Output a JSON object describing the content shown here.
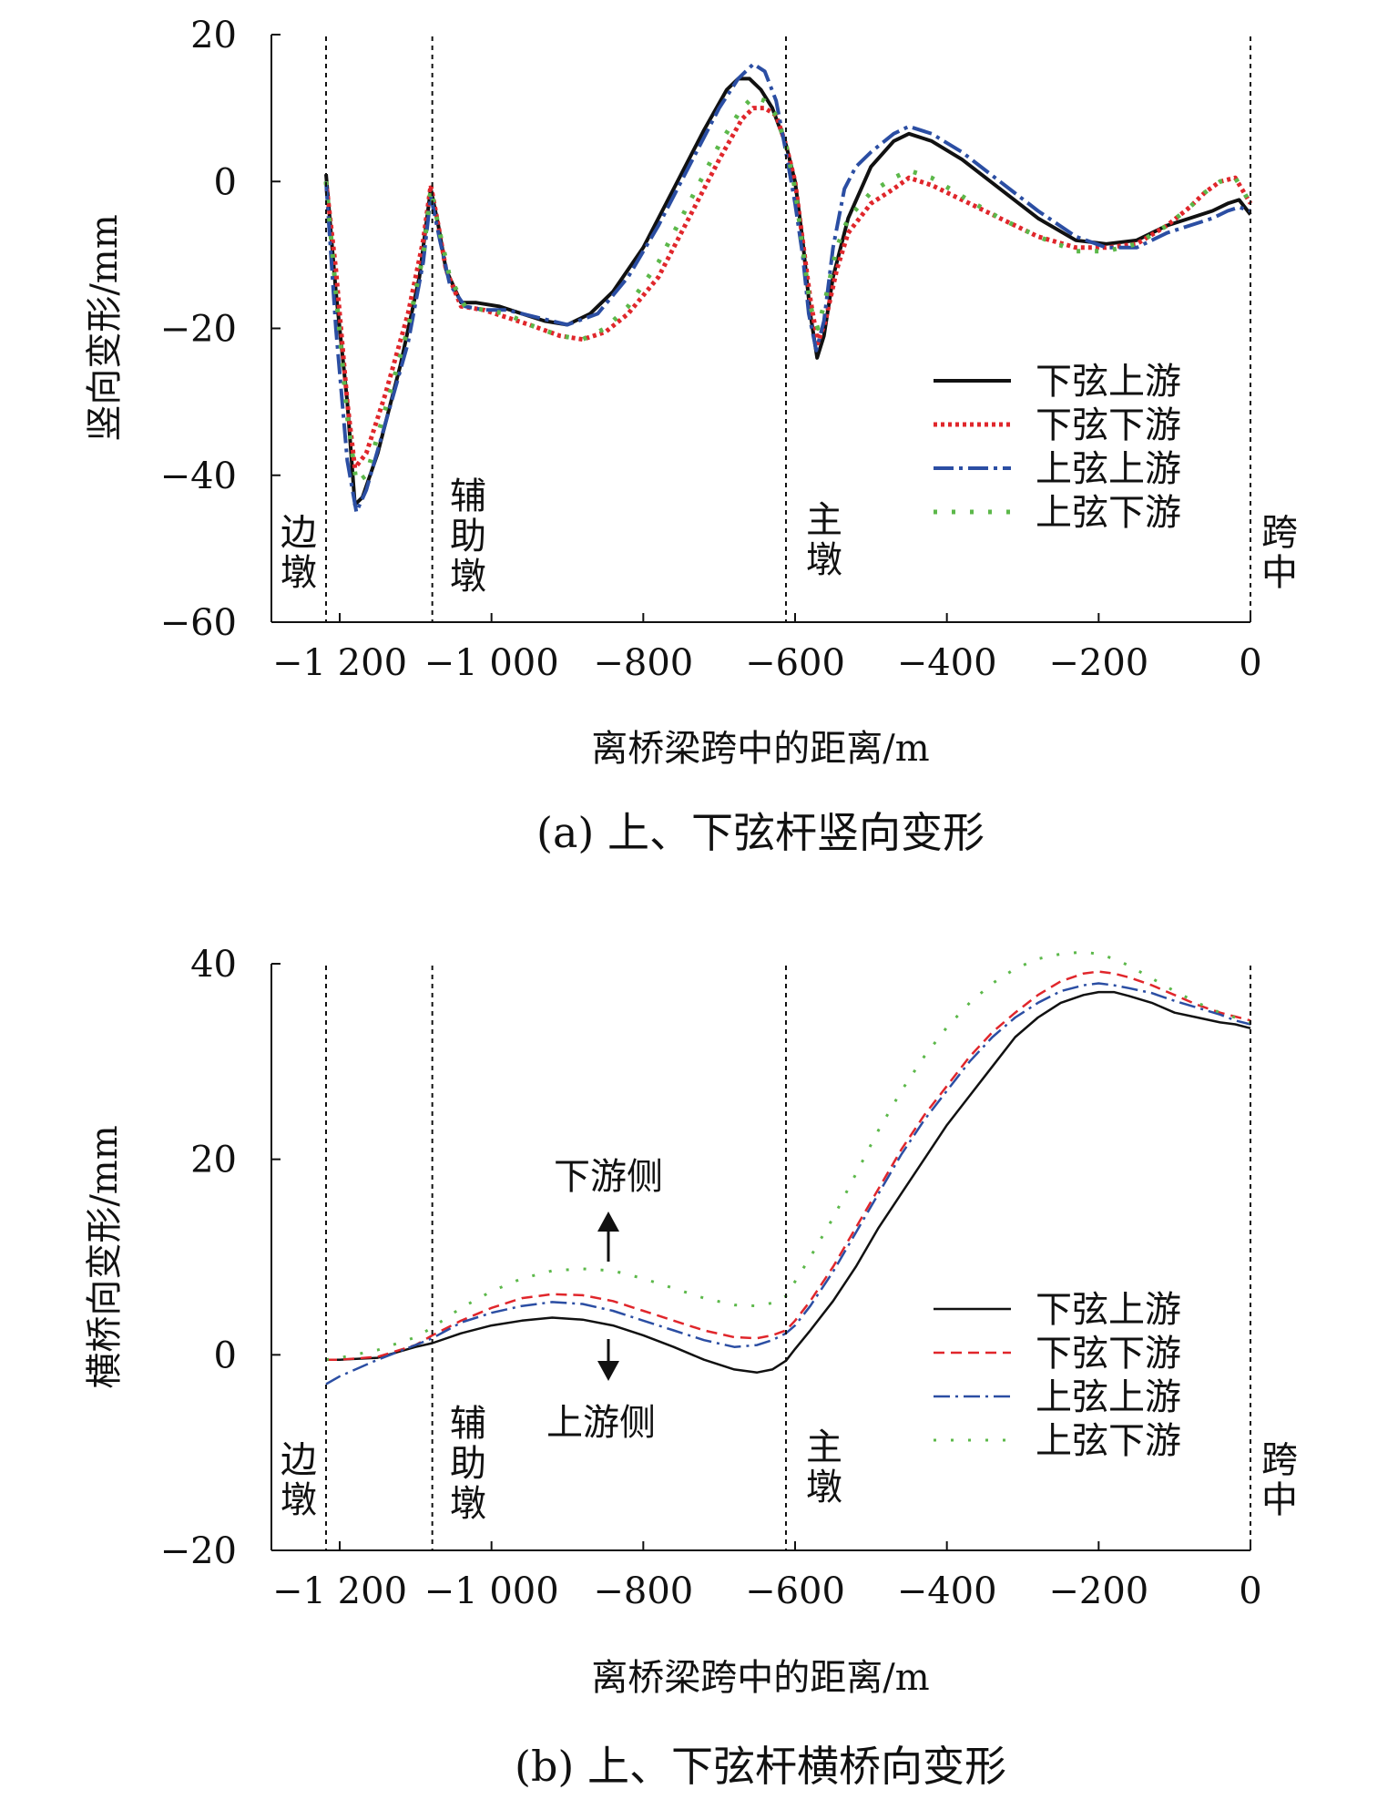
{
  "captions": {
    "a": "(a) 上、下弦杆竖向变形",
    "b": "(b) 上、下弦杆横桥向变形"
  },
  "pier_labels": {
    "side": [
      "边",
      "墩"
    ],
    "aux": [
      "辅",
      "助",
      "墩"
    ],
    "main": [
      "主",
      "墩"
    ],
    "mid": [
      "跨",
      "中"
    ]
  },
  "notes": {
    "downstream_side": "下游侧",
    "upstream_side": "上游侧"
  },
  "colors": {
    "lower_upstream": "#111111",
    "lower_downstream": "#e0262b",
    "upper_upstream": "#2b4ea3",
    "upper_downstream": "#5cb84a"
  },
  "chart_data": [
    {
      "type": "line",
      "caption": "(a) 上、下弦杆竖向变形",
      "xlabel": "离桥梁跨中的距离/m",
      "ylabel": "竖向变形/mm",
      "xlim": [
        -1290,
        0
      ],
      "ylim": [
        -60,
        20
      ],
      "x_ticks": [
        -1200,
        -1000,
        -800,
        -600,
        -400,
        -200,
        0
      ],
      "x_tick_labels": [
        "−1 200",
        "−1 000",
        "−800",
        "−600",
        "−400",
        "−200",
        "0"
      ],
      "y_ticks": [
        20,
        0,
        -20,
        -40,
        -60
      ],
      "y_tick_labels": [
        "20",
        "0",
        "−20",
        "−40",
        "−60"
      ],
      "pier_lines": [
        -1218,
        -1078,
        -612,
        0
      ],
      "legend_position": "right",
      "series": [
        {
          "name": "下弦上游",
          "style": "solid",
          "x": [
            -1218,
            -1205,
            -1190,
            -1180,
            -1170,
            -1150,
            -1120,
            -1095,
            -1080,
            -1070,
            -1060,
            -1040,
            -1020,
            -990,
            -960,
            -930,
            -900,
            -870,
            -840,
            -800,
            -760,
            -720,
            -690,
            -675,
            -660,
            -645,
            -630,
            -612,
            -600,
            -590,
            -580,
            -571,
            -562,
            -550,
            -530,
            -500,
            -470,
            -450,
            -420,
            -380,
            -330,
            -280,
            -230,
            -190,
            -150,
            -110,
            -80,
            -50,
            -30,
            -15,
            0
          ],
          "y": [
            1,
            -15,
            -30,
            -44,
            -43,
            -37,
            -25,
            -13,
            -1,
            -6,
            -12,
            -16.5,
            -16.5,
            -17,
            -18,
            -19,
            -19.5,
            -18,
            -15,
            -9,
            -1,
            7,
            12.5,
            14,
            14,
            12.5,
            10,
            5,
            0,
            -8,
            -18,
            -24,
            -21,
            -13,
            -5,
            2,
            5.5,
            6.5,
            5.5,
            3,
            -1,
            -5,
            -8,
            -8.5,
            -8,
            -6,
            -5,
            -4,
            -3,
            -2.5,
            -4.5
          ]
        },
        {
          "name": "下弦下游",
          "style": "dotted",
          "x": [
            -1218,
            -1205,
            -1190,
            -1180,
            -1165,
            -1140,
            -1110,
            -1090,
            -1080,
            -1070,
            -1060,
            -1040,
            -1010,
            -980,
            -950,
            -910,
            -880,
            -850,
            -820,
            -780,
            -740,
            -700,
            -670,
            -655,
            -640,
            -625,
            -612,
            -600,
            -590,
            -580,
            -570,
            -560,
            -545,
            -530,
            -500,
            -470,
            -450,
            -420,
            -380,
            -330,
            -280,
            -230,
            -190,
            -150,
            -110,
            -80,
            -60,
            -40,
            -20,
            0
          ],
          "y": [
            0,
            -12,
            -30,
            -39,
            -37,
            -29,
            -18,
            -8,
            -0.5,
            -6,
            -12,
            -17,
            -17.5,
            -18.5,
            -19.5,
            -21,
            -21.5,
            -20.5,
            -18,
            -13,
            -5,
            3,
            8.5,
            10,
            10,
            9,
            5,
            0,
            -8,
            -16,
            -22,
            -19,
            -12,
            -7,
            -3,
            -1,
            0.5,
            -0.5,
            -2.5,
            -5,
            -7.5,
            -9,
            -9,
            -8.5,
            -6,
            -3.5,
            -1.5,
            0,
            0.5,
            -3
          ]
        },
        {
          "name": "上弦上游",
          "style": "dashdot",
          "x": [
            -1218,
            -1205,
            -1190,
            -1178,
            -1165,
            -1140,
            -1110,
            -1090,
            -1080,
            -1068,
            -1055,
            -1035,
            -1010,
            -980,
            -940,
            -900,
            -860,
            -820,
            -780,
            -740,
            -700,
            -675,
            -655,
            -640,
            -625,
            -612,
            -600,
            -590,
            -582,
            -572,
            -562,
            -550,
            -535,
            -520,
            -500,
            -470,
            -450,
            -420,
            -380,
            -330,
            -280,
            -230,
            -190,
            -150,
            -110,
            -80,
            -50,
            -30,
            -15,
            0
          ],
          "y": [
            0,
            -20,
            -38,
            -45,
            -42,
            -33,
            -22,
            -11,
            -2,
            -8,
            -14,
            -17,
            -17.5,
            -17.5,
            -18.5,
            -19.5,
            -18,
            -13,
            -6,
            2,
            10,
            14,
            16,
            15,
            11,
            4,
            -3,
            -10,
            -18,
            -23,
            -19,
            -9,
            -1,
            2,
            4,
            6.5,
            7.5,
            6.5,
            4,
            0,
            -4,
            -7.5,
            -9,
            -9,
            -7,
            -6,
            -5,
            -4,
            -3.5,
            -4
          ]
        },
        {
          "name": "上弦下游",
          "style": "sparse-dotted",
          "x": [
            -1218,
            -1205,
            -1190,
            -1178,
            -1165,
            -1140,
            -1110,
            -1090,
            -1080,
            -1068,
            -1055,
            -1035,
            -1010,
            -980,
            -950,
            -910,
            -880,
            -850,
            -820,
            -780,
            -740,
            -700,
            -670,
            -655,
            -640,
            -625,
            -612,
            -600,
            -590,
            -580,
            -570,
            -560,
            -545,
            -530,
            -500,
            -470,
            -450,
            -420,
            -380,
            -330,
            -280,
            -230,
            -190,
            -150,
            -110,
            -80,
            -60,
            -40,
            -20,
            0
          ],
          "y": [
            0,
            -15,
            -32,
            -41,
            -40,
            -31,
            -20,
            -10,
            -1,
            -7,
            -13,
            -17,
            -17.5,
            -18,
            -19.5,
            -21,
            -21.5,
            -20,
            -17,
            -11,
            -3,
            5,
            10,
            11.5,
            11,
            9,
            5,
            -1,
            -9,
            -17,
            -20,
            -16,
            -9,
            -5,
            -1.5,
            0.5,
            1.5,
            0.5,
            -2,
            -5,
            -7.5,
            -9.5,
            -9.5,
            -8.5,
            -6,
            -3.5,
            -1.5,
            0,
            0.5,
            -3
          ]
        }
      ]
    },
    {
      "type": "line",
      "caption": "(b) 上、下弦杆横桥向变形",
      "xlabel": "离桥梁跨中的距离/m",
      "ylabel": "横桥向变形/mm",
      "xlim": [
        -1290,
        0
      ],
      "ylim": [
        -20,
        40
      ],
      "x_ticks": [
        -1200,
        -1000,
        -800,
        -600,
        -400,
        -200,
        0
      ],
      "x_tick_labels": [
        "−1 200",
        "−1 000",
        "−800",
        "−600",
        "−400",
        "−200",
        "0"
      ],
      "y_ticks": [
        40,
        20,
        0,
        -20
      ],
      "y_tick_labels": [
        "40",
        "20",
        "0",
        "−20"
      ],
      "pier_lines": [
        -1218,
        -1078,
        -612,
        0
      ],
      "legend_position": "right",
      "series": [
        {
          "name": "下弦上游",
          "style": "solid",
          "x": [
            -1218,
            -1200,
            -1150,
            -1100,
            -1078,
            -1040,
            -1000,
            -960,
            -920,
            -880,
            -840,
            -800,
            -760,
            -720,
            -680,
            -650,
            -630,
            -612,
            -600,
            -580,
            -550,
            -520,
            -490,
            -460,
            -430,
            -400,
            -370,
            -340,
            -310,
            -280,
            -250,
            -220,
            -200,
            -180,
            -160,
            -130,
            -100,
            -70,
            -40,
            -20,
            0
          ],
          "y": [
            -0.5,
            -0.5,
            -0.3,
            0.8,
            1.2,
            2.2,
            3,
            3.5,
            3.8,
            3.6,
            3,
            2,
            0.8,
            -0.5,
            -1.5,
            -1.8,
            -1.5,
            -0.6,
            0.6,
            2.5,
            5.5,
            9,
            13,
            16.5,
            20,
            23.5,
            26.5,
            29.5,
            32.5,
            34.5,
            36,
            36.8,
            37.1,
            37.1,
            36.7,
            36,
            35,
            34.5,
            34,
            33.8,
            33.4
          ]
        },
        {
          "name": "下弦下游",
          "style": "dashed",
          "x": [
            -1218,
            -1200,
            -1150,
            -1100,
            -1078,
            -1040,
            -1000,
            -960,
            -920,
            -880,
            -840,
            -800,
            -760,
            -720,
            -680,
            -650,
            -630,
            -612,
            -600,
            -580,
            -550,
            -520,
            -490,
            -460,
            -430,
            -400,
            -370,
            -340,
            -310,
            -280,
            -250,
            -220,
            -200,
            -180,
            -160,
            -130,
            -100,
            -70,
            -40,
            -20,
            0
          ],
          "y": [
            -0.5,
            -0.5,
            -0.2,
            1,
            2,
            3.5,
            4.8,
            5.8,
            6.2,
            6.1,
            5.5,
            4.5,
            3.5,
            2.5,
            1.8,
            1.7,
            2,
            2.5,
            3.5,
            5.5,
            9,
            13,
            17,
            21,
            24.5,
            27.5,
            30.5,
            33,
            35,
            36.8,
            38.2,
            39,
            39.2,
            39,
            38.6,
            37.8,
            36.8,
            35.8,
            35,
            34.6,
            34.2
          ]
        },
        {
          "name": "上弦上游",
          "style": "dashdot",
          "x": [
            -1218,
            -1200,
            -1150,
            -1100,
            -1078,
            -1040,
            -1000,
            -960,
            -920,
            -880,
            -840,
            -800,
            -760,
            -720,
            -680,
            -650,
            -630,
            -612,
            -600,
            -580,
            -550,
            -520,
            -490,
            -460,
            -430,
            -400,
            -370,
            -340,
            -310,
            -280,
            -250,
            -220,
            -200,
            -180,
            -160,
            -130,
            -100,
            -70,
            -40,
            -20,
            0
          ],
          "y": [
            -3,
            -2.2,
            -0.5,
            1,
            1.7,
            3.3,
            4.3,
            5,
            5.4,
            5.2,
            4.5,
            3.5,
            2.5,
            1.5,
            0.8,
            1,
            1.5,
            2.2,
            3,
            5,
            8.5,
            12.5,
            16.5,
            20.5,
            24,
            27,
            30,
            32.5,
            34.5,
            36,
            37.2,
            37.8,
            38,
            37.8,
            37.5,
            37,
            36.2,
            35.5,
            34.8,
            34.2,
            33.8
          ]
        },
        {
          "name": "上弦下游",
          "style": "sparse-dotted",
          "x": [
            -1218,
            -1200,
            -1150,
            -1100,
            -1078,
            -1040,
            -1000,
            -960,
            -920,
            -880,
            -840,
            -800,
            -760,
            -720,
            -680,
            -650,
            -630,
            -612,
            -600,
            -580,
            -550,
            -520,
            -490,
            -460,
            -430,
            -400,
            -370,
            -340,
            -310,
            -280,
            -250,
            -220,
            -200,
            -180,
            -160,
            -130,
            -100,
            -70,
            -40,
            -20,
            0
          ],
          "y": [
            -0.5,
            -0.3,
            0.5,
            1.8,
            2.8,
            4.8,
            6.5,
            7.8,
            8.6,
            8.8,
            8.6,
            7.8,
            6.8,
            5.8,
            5.1,
            5,
            5.3,
            6,
            7.5,
            10,
            14,
            18.5,
            23,
            27,
            30.5,
            33.5,
            36,
            38,
            39.5,
            40.5,
            41,
            41.2,
            41,
            40.5,
            39.8,
            38.5,
            37.2,
            36,
            35,
            34.5,
            34
          ]
        }
      ]
    }
  ]
}
